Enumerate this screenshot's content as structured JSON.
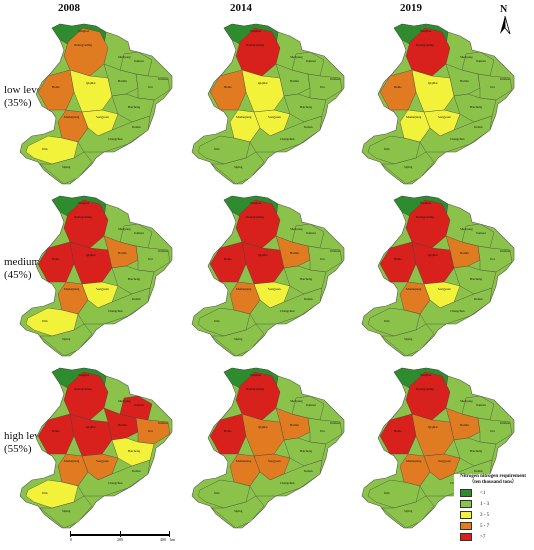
{
  "years": [
    "2008",
    "2014",
    "2019"
  ],
  "levels": [
    {
      "line1": "low level",
      "line2": "(35%)"
    },
    {
      "line1": "medium level",
      "line2": "(45%)"
    },
    {
      "line1": "high level",
      "line2": "(55%)"
    }
  ],
  "north": "N",
  "legend": {
    "title_line1": "Nitrogen nitrogen requirement",
    "title_line2": "（ten thousand tons）",
    "items": [
      {
        "label": "<1",
        "color": "#2e8b2e"
      },
      {
        "label": "1 - 3",
        "color": "#8bc34a"
      },
      {
        "label": "3 - 5",
        "color": "#f2f23a"
      },
      {
        "label": "5 - 7",
        "color": "#e07b22"
      },
      {
        "label": ">7",
        "color": "#d8211c"
      }
    ]
  },
  "scale": {
    "labels": [
      "0",
      "200",
      "400"
    ],
    "unit": "km"
  },
  "map_labels": [
    "Daxing'anling",
    "Heihe",
    "Qiqihar",
    "Harbin",
    "Jiamusi",
    "Jixi",
    "Mudanjiang",
    "Songyuan",
    "Baicheng",
    "Jilin",
    "Changchun",
    "Siping",
    "Tonghua",
    "Shenyang",
    "Dalian",
    "Jinzhou"
  ],
  "maps": [
    [
      3,
      3,
      2,
      1,
      1,
      1,
      3,
      2,
      1,
      2,
      1,
      1
    ],
    [
      4,
      3,
      2,
      1,
      1,
      1,
      2,
      2,
      1,
      1,
      1,
      1
    ],
    [
      4,
      3,
      2,
      1,
      1,
      1,
      2,
      2,
      1,
      1,
      1,
      1
    ],
    [
      4,
      4,
      4,
      3,
      1,
      1,
      3,
      2,
      1,
      2,
      1,
      1
    ],
    [
      4,
      4,
      4,
      3,
      1,
      1,
      3,
      2,
      1,
      1,
      1,
      1
    ],
    [
      4,
      4,
      4,
      3,
      1,
      1,
      3,
      2,
      1,
      1,
      1,
      1
    ],
    [
      4,
      4,
      4,
      4,
      4,
      3,
      3,
      3,
      2,
      2,
      1,
      1
    ],
    [
      4,
      4,
      3,
      3,
      1,
      1,
      3,
      3,
      1,
      1,
      1,
      1
    ],
    [
      4,
      4,
      3,
      3,
      1,
      1,
      3,
      3,
      1,
      1,
      1,
      1
    ]
  ]
}
